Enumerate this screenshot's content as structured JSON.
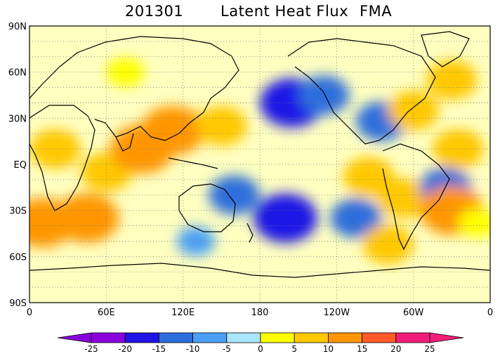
{
  "title": {
    "date": "201301",
    "variable": "Latent Heat Flux",
    "season": "FMA"
  },
  "map": {
    "projection": "cylindrical equidistant, 0 to 360 longitude",
    "lat_labels": [
      "90N",
      "60N",
      "30N",
      "EQ",
      "30S",
      "60S",
      "90S"
    ],
    "lon_labels": [
      "0",
      "60E",
      "120E",
      "180",
      "120W",
      "60W",
      "0"
    ],
    "gridlines": "dotted"
  },
  "colorbar": {
    "labels": [
      "-25",
      "-20",
      "-15",
      "-10",
      "-5",
      "0",
      "5",
      "10",
      "15",
      "20",
      "25"
    ],
    "colors": [
      "#8a00dc",
      "#1e14e6",
      "#2d6edc",
      "#4ba0f5",
      "#aae6ff",
      "#ffffc0",
      "#ffff00",
      "#ffc800",
      "#ff9600",
      "#ff5a28",
      "#f01e78"
    ],
    "low_end_color": "#8a00dc",
    "high_end_color": "#f01e78"
  },
  "anomalies": [
    {
      "lon": 60,
      "lat": -5,
      "level": 2
    },
    {
      "lon": 45,
      "lat": -35,
      "level": 3
    },
    {
      "lon": 88,
      "lat": 10,
      "level": 3
    },
    {
      "lon": 112,
      "lat": 22,
      "level": 3
    },
    {
      "lon": 150,
      "lat": 25,
      "level": 2
    },
    {
      "lon": 205,
      "lat": 40,
      "level": -3
    },
    {
      "lon": 230,
      "lat": 45,
      "level": -2
    },
    {
      "lon": 265,
      "lat": -8,
      "level": 2
    },
    {
      "lon": 292,
      "lat": -22,
      "level": 2
    },
    {
      "lon": 275,
      "lat": 28,
      "level": -2
    },
    {
      "lon": 300,
      "lat": 35,
      "level": 2
    },
    {
      "lon": 330,
      "lat": 55,
      "level": 2
    },
    {
      "lon": 335,
      "lat": 10,
      "level": 2
    },
    {
      "lon": 200,
      "lat": -35,
      "level": -3
    },
    {
      "lon": 160,
      "lat": -20,
      "level": -2
    },
    {
      "lon": 255,
      "lat": -35,
      "level": -2
    },
    {
      "lon": 325,
      "lat": -15,
      "level": -2
    },
    {
      "lon": 330,
      "lat": -30,
      "level": 3
    },
    {
      "lon": 20,
      "lat": 10,
      "level": 2
    },
    {
      "lon": 75,
      "lat": 60,
      "level": 1
    },
    {
      "lon": 350,
      "lat": -38,
      "level": 1
    },
    {
      "lon": 280,
      "lat": -52,
      "level": 2
    },
    {
      "lon": 130,
      "lat": -50,
      "level": -1
    },
    {
      "lon": 10,
      "lat": -38,
      "level": 3
    }
  ]
}
